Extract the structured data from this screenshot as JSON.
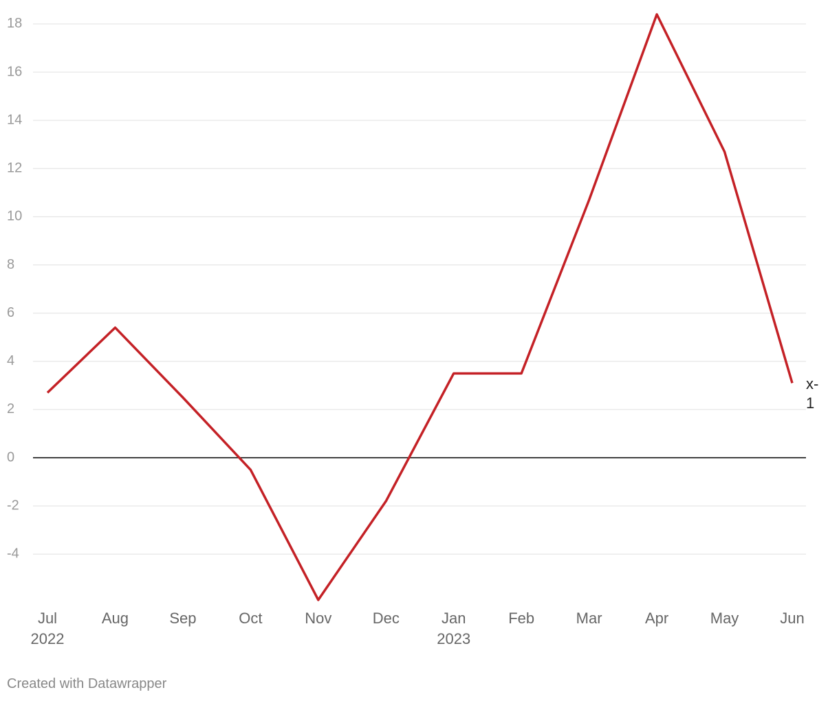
{
  "chart_data": {
    "type": "line",
    "categories": [
      "Jul 2022",
      "Aug",
      "Sep",
      "Oct",
      "Nov",
      "Dec",
      "Jan 2023",
      "Feb",
      "Mar",
      "Apr",
      "May",
      "Jun"
    ],
    "series": [
      {
        "name": "x-1",
        "color": "#c42126",
        "values": [
          2.7,
          5.4,
          2.5,
          -0.5,
          -5.9,
          -1.8,
          3.5,
          3.5,
          10.7,
          18.4,
          12.7,
          3.1
        ]
      }
    ],
    "ylim": [
      -6,
      18.4
    ],
    "yticks": [
      -4,
      -2,
      0,
      2,
      4,
      6,
      8,
      10,
      12,
      14,
      16,
      18
    ],
    "grid": true,
    "credit": "Created with Datawrapper"
  }
}
